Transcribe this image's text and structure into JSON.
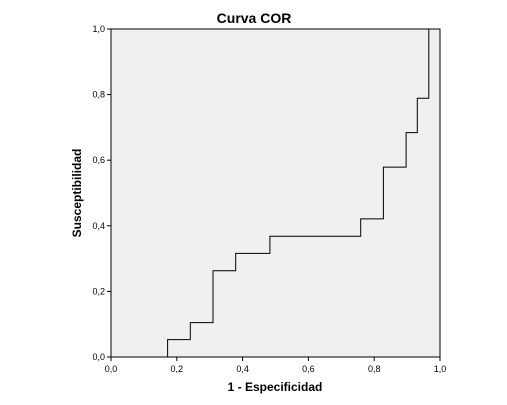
{
  "chart_data": {
    "type": "line",
    "title": "Curva COR",
    "xlabel": "1 - Especificidad",
    "ylabel": "Susceptibilidad",
    "xlim": [
      0,
      1
    ],
    "ylim": [
      0,
      1
    ],
    "x_ticks": [
      {
        "value": 0.0,
        "label": "0,0"
      },
      {
        "value": 0.2,
        "label": "0,2"
      },
      {
        "value": 0.4,
        "label": "0,4"
      },
      {
        "value": 0.6,
        "label": "0,6"
      },
      {
        "value": 0.8,
        "label": "0,8"
      },
      {
        "value": 1.0,
        "label": "1,0"
      }
    ],
    "y_ticks": [
      {
        "value": 0.0,
        "label": "0,0"
      },
      {
        "value": 0.2,
        "label": "0,2"
      },
      {
        "value": 0.4,
        "label": "0,4"
      },
      {
        "value": 0.6,
        "label": "0,6"
      },
      {
        "value": 0.8,
        "label": "0,8"
      },
      {
        "value": 1.0,
        "label": "1,0"
      }
    ],
    "grid": false,
    "legend": "none",
    "colors": {
      "plot_background": "#f0f0f0",
      "frame": "#000000",
      "line": "#000000"
    },
    "series": [
      {
        "x": [
          0.0,
          0.172,
          0.172,
          0.241,
          0.241,
          0.31,
          0.31,
          0.379,
          0.379,
          0.483,
          0.483,
          0.759,
          0.759,
          0.828,
          0.828,
          0.897,
          0.897,
          0.931,
          0.931,
          0.966,
          0.966,
          1.0
        ],
        "y": [
          0.0,
          0.0,
          0.053,
          0.053,
          0.105,
          0.105,
          0.263,
          0.263,
          0.316,
          0.316,
          0.368,
          0.368,
          0.421,
          0.421,
          0.579,
          0.579,
          0.684,
          0.684,
          0.789,
          0.789,
          1.0,
          1.0
        ]
      }
    ]
  }
}
